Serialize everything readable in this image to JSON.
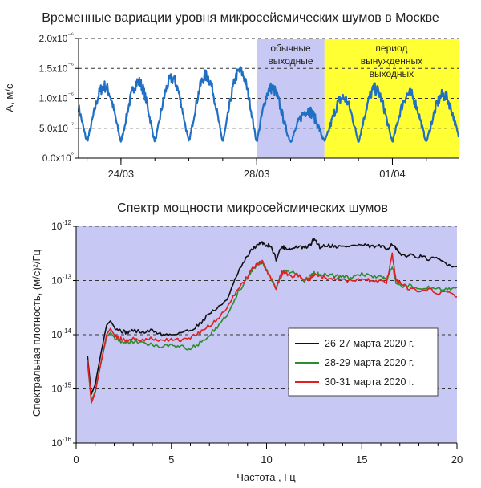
{
  "chart_data": [
    {
      "type": "line",
      "title": "Временные вариации уровня микросейсмических шумов в Москве",
      "ylabel": "A, м/с",
      "ylim": [
        0,
        2e-06
      ],
      "yticks": [
        {
          "value": 0,
          "label": "0.0x10⁰"
        },
        {
          "value": 5e-07,
          "label": "5.0x10⁻⁷"
        },
        {
          "value": 1e-06,
          "label": "1.0x10⁻⁶"
        },
        {
          "value": 1.5e-06,
          "label": "1.5x10⁻⁶"
        },
        {
          "value": 2e-06,
          "label": "2.0x10⁻⁶"
        }
      ],
      "xlim_days": [
        22.75,
        33.95
      ],
      "xticks": [
        {
          "day": 24,
          "label": "24/03"
        },
        {
          "day": 28,
          "label": "28/03"
        },
        {
          "day": 32,
          "label": "01/04"
        }
      ],
      "grid": "horizontal dashed",
      "shaded_regions": [
        {
          "start_day": 28.0,
          "end_day": 30.0,
          "color": "#c8c8f5",
          "label": [
            "обычные",
            "выходные"
          ]
        },
        {
          "start_day": 30.0,
          "end_day": 33.95,
          "color": "#ffff33",
          "label": [
            "период",
            "вынужденных",
            "выходных"
          ]
        }
      ],
      "series": [
        {
          "color": "#1f6fc5",
          "daily_peaks_day": [
            23.0,
            24.0,
            25.0,
            26.0,
            27.0,
            28.0,
            29.0,
            30.0,
            31.0,
            32.0,
            33.0
          ],
          "daily_peak_values": [
            1.15e-06,
            1.25e-06,
            1.3e-06,
            1.35e-06,
            1.4e-06,
            1.5e-06,
            8e-07,
            8e-07,
            1.2e-06,
            1.1e-06,
            1.05e-06
          ],
          "night_min_value": 2.8e-07
        }
      ]
    },
    {
      "type": "line",
      "title": "Спектр мощности микросейсмических шумов",
      "xlabel": "Частота , Гц",
      "ylabel": "Спектральная плотность, (м/с)²/Гц",
      "xlim": [
        0,
        20
      ],
      "ylim": [
        1e-16,
        1e-12
      ],
      "yscale": "log",
      "xticks": [
        0,
        5,
        10,
        15,
        20
      ],
      "yticks": [
        {
          "value": 1e-12,
          "base": "10",
          "exp": "-12"
        },
        {
          "value": 1e-13,
          "base": "10",
          "exp": "-13"
        },
        {
          "value": 1e-14,
          "base": "10",
          "exp": "-14"
        },
        {
          "value": 1e-15,
          "base": "10",
          "exp": "-15"
        },
        {
          "value": 1e-16,
          "base": "10",
          "exp": "-16"
        }
      ],
      "background": "#c8c8f5",
      "grid": "horizontal dashed",
      "legend": "right",
      "x": [
        0.6,
        0.8,
        1.0,
        1.3,
        1.6,
        1.8,
        2.0,
        2.3,
        2.6,
        3.0,
        3.5,
        4.0,
        4.5,
        5.0,
        5.5,
        6.0,
        6.5,
        7.0,
        7.5,
        8.0,
        8.5,
        9.0,
        9.3,
        9.6,
        9.8,
        10.0,
        10.2,
        10.5,
        10.8,
        11.0,
        11.3,
        11.6,
        12.0,
        12.3,
        12.5,
        12.8,
        13.2,
        13.6,
        14.0,
        14.5,
        15.0,
        15.5,
        16.0,
        16.3,
        16.6,
        16.8,
        17.0,
        17.5,
        18.0,
        18.5,
        19.0,
        19.5,
        20.0
      ],
      "series": [
        {
          "name": "26-27 марта 2020 г.",
          "color": "#111111",
          "values": [
            4e-15,
            8e-16,
            1.2e-15,
            4.5e-15,
            1.5e-14,
            1.8e-14,
            1.4e-14,
            1.2e-14,
            1.1e-14,
            1.2e-14,
            1.1e-14,
            1.2e-14,
            1e-14,
            1e-14,
            1.1e-14,
            1.2e-14,
            1.6e-14,
            2.5e-14,
            3.2e-14,
            5e-14,
            1.4e-13,
            2.8e-13,
            4e-13,
            4.6e-13,
            5e-13,
            4.4e-13,
            4.5e-13,
            2.5e-13,
            4.2e-13,
            4e-13,
            3.8e-13,
            4.2e-13,
            4e-13,
            4.5e-13,
            6e-13,
            4.2e-13,
            4.5e-13,
            4.3e-13,
            4.2e-13,
            4.4e-13,
            4.5e-13,
            4.2e-13,
            4.3e-13,
            3.8e-13,
            4.8e-13,
            3.8e-13,
            3e-13,
            2.9e-13,
            2.8e-13,
            2.5e-13,
            2.5e-13,
            2e-13,
            1.8e-13
          ]
        },
        {
          "name": "28-29 марта 2020 г.",
          "color": "#2e8b2e",
          "values": [
            3e-15,
            6e-16,
            9e-16,
            3e-15,
            9e-15,
            1.1e-14,
            9e-15,
            7.5e-15,
            7e-15,
            7.5e-15,
            7e-15,
            6.5e-15,
            6e-15,
            6.5e-15,
            6e-15,
            5.5e-15,
            7e-15,
            1e-14,
            1.5e-14,
            2.5e-14,
            6e-14,
            1.1e-13,
            1.7e-13,
            2e-13,
            2.1e-13,
            1.6e-13,
            1.2e-13,
            7e-14,
            1.3e-13,
            1.5e-13,
            1.4e-13,
            1.3e-13,
            1e-13,
            1.2e-13,
            1.4e-13,
            1.3e-13,
            1.3e-13,
            1.2e-13,
            1.2e-13,
            1.1e-13,
            1.3e-13,
            1.2e-13,
            1.2e-13,
            1e-13,
            1.9e-13,
            9e-14,
            8e-14,
            8e-14,
            7.5e-14,
            7.5e-14,
            7e-14,
            7e-14,
            7.5e-14
          ]
        },
        {
          "name": "30-31 марта 2020 г.",
          "color": "#e02020",
          "values": [
            3.5e-15,
            5.5e-16,
            8.5e-16,
            3e-15,
            1e-14,
            1.3e-14,
            1e-14,
            8.5e-15,
            8e-15,
            8.5e-15,
            8e-15,
            8.5e-15,
            8e-15,
            8e-15,
            8e-15,
            9e-15,
            1.1e-14,
            1.5e-14,
            2e-14,
            3.5e-14,
            7e-14,
            1.2e-13,
            1.8e-13,
            2.1e-13,
            2.2e-13,
            1.5e-13,
            1.2e-13,
            7e-14,
            1.4e-13,
            1.4e-13,
            1.2e-13,
            1.3e-13,
            1e-13,
            1.1e-13,
            1.3e-13,
            1.2e-13,
            1.1e-13,
            1.1e-13,
            1e-13,
            1e-13,
            1.1e-13,
            1e-13,
            1e-13,
            9e-14,
            3e-13,
            1e-13,
            9e-14,
            7e-14,
            6.5e-14,
            7e-14,
            6e-14,
            6e-14,
            5e-14
          ]
        }
      ]
    }
  ]
}
